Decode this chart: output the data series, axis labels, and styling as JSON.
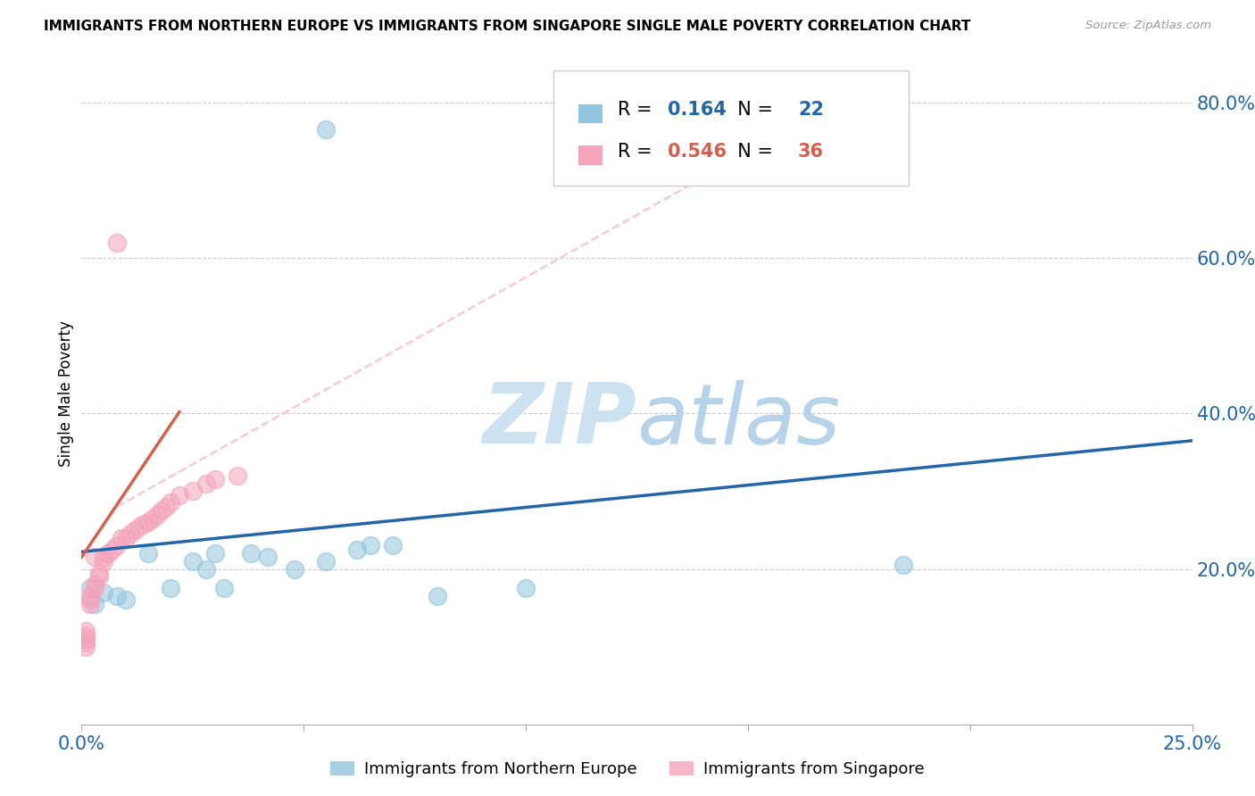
{
  "title": "IMMIGRANTS FROM NORTHERN EUROPE VS IMMIGRANTS FROM SINGAPORE SINGLE MALE POVERTY CORRELATION CHART",
  "source": "Source: ZipAtlas.com",
  "ylabel": "Single Male Poverty",
  "xlim": [
    0.0,
    0.25
  ],
  "ylim": [
    0.0,
    0.85
  ],
  "xticks": [
    0.0,
    0.05,
    0.1,
    0.15,
    0.2,
    0.25
  ],
  "xticklabels": [
    "0.0%",
    "",
    "",
    "",
    "",
    "25.0%"
  ],
  "yticks_right": [
    0.2,
    0.4,
    0.6,
    0.8
  ],
  "ytick_labels_right": [
    "20.0%",
    "40.0%",
    "60.0%",
    "80.0%"
  ],
  "R_blue": 0.164,
  "N_blue": 22,
  "R_pink": 0.546,
  "N_pink": 36,
  "legend_labels": [
    "Immigrants from Northern Europe",
    "Immigrants from Singapore"
  ],
  "blue_color": "#92c5de",
  "pink_color": "#f4a4bb",
  "blue_line_color": "#2166ac",
  "pink_line_color": "#d6604d",
  "watermark_zip": "ZIP",
  "watermark_atlas": "atlas",
  "blue_scatter_x": [
    0.055,
    0.003,
    0.015,
    0.008,
    0.01,
    0.025,
    0.03,
    0.032,
    0.038,
    0.042,
    0.048,
    0.055,
    0.062,
    0.07,
    0.185,
    0.002,
    0.005,
    0.02,
    0.028,
    0.1,
    0.065,
    0.08
  ],
  "blue_scatter_y": [
    0.765,
    0.155,
    0.22,
    0.165,
    0.16,
    0.21,
    0.22,
    0.175,
    0.22,
    0.215,
    0.2,
    0.21,
    0.225,
    0.23,
    0.205,
    0.175,
    0.17,
    0.175,
    0.2,
    0.175,
    0.23,
    0.165
  ],
  "pink_scatter_x": [
    0.001,
    0.001,
    0.001,
    0.001,
    0.001,
    0.002,
    0.002,
    0.002,
    0.003,
    0.003,
    0.003,
    0.004,
    0.004,
    0.005,
    0.005,
    0.006,
    0.007,
    0.008,
    0.009,
    0.01,
    0.011,
    0.012,
    0.013,
    0.014,
    0.015,
    0.016,
    0.017,
    0.018,
    0.019,
    0.02,
    0.022,
    0.025,
    0.028,
    0.03,
    0.035,
    0.008
  ],
  "pink_scatter_y": [
    0.105,
    0.11,
    0.115,
    0.12,
    0.1,
    0.155,
    0.16,
    0.165,
    0.175,
    0.18,
    0.215,
    0.19,
    0.195,
    0.21,
    0.215,
    0.22,
    0.225,
    0.23,
    0.24,
    0.24,
    0.245,
    0.25,
    0.255,
    0.258,
    0.26,
    0.265,
    0.27,
    0.275,
    0.28,
    0.285,
    0.295,
    0.3,
    0.31,
    0.315,
    0.32,
    0.62
  ]
}
